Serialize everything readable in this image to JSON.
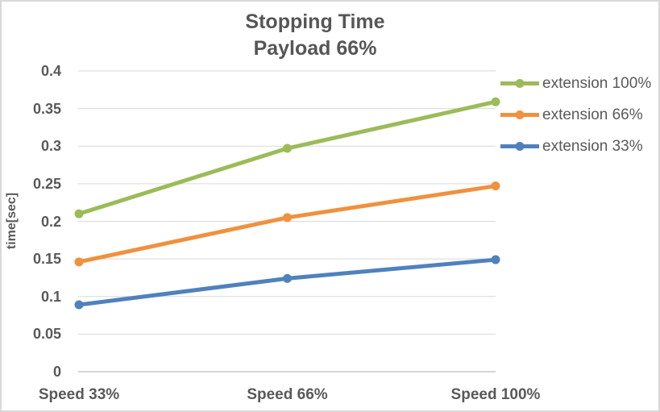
{
  "chart_data": {
    "type": "line",
    "title": "Stopping Time",
    "subtitle": "Payload 66%",
    "categories": [
      "Speed 33%",
      "Speed 66%",
      "Speed 100%"
    ],
    "series": [
      {
        "name": "extension 100%",
        "color": "#9CBB59",
        "values": [
          0.21,
          0.297,
          0.359
        ]
      },
      {
        "name": "extension 66%",
        "color": "#F0913E",
        "values": [
          0.146,
          0.205,
          0.247
        ]
      },
      {
        "name": "extension 33%",
        "color": "#4F81BD",
        "values": [
          0.089,
          0.124,
          0.149
        ]
      }
    ],
    "xlabel": "",
    "ylabel": "time[sec]",
    "ylim": [
      0,
      0.4
    ],
    "ytick_step": 0.05,
    "ytick_labels": [
      "0",
      "0.05",
      "0.1",
      "0.15",
      "0.2",
      "0.25",
      "0.3",
      "0.35",
      "0.4"
    ],
    "grid": true,
    "legend_position": "right",
    "colors": {
      "gridline": "#d9d9d9",
      "axis_line": "#c9c9c9",
      "tick_text": "#595959",
      "title_text": "#565656",
      "border": "#d9d9d9",
      "background": "#ffffff"
    }
  }
}
